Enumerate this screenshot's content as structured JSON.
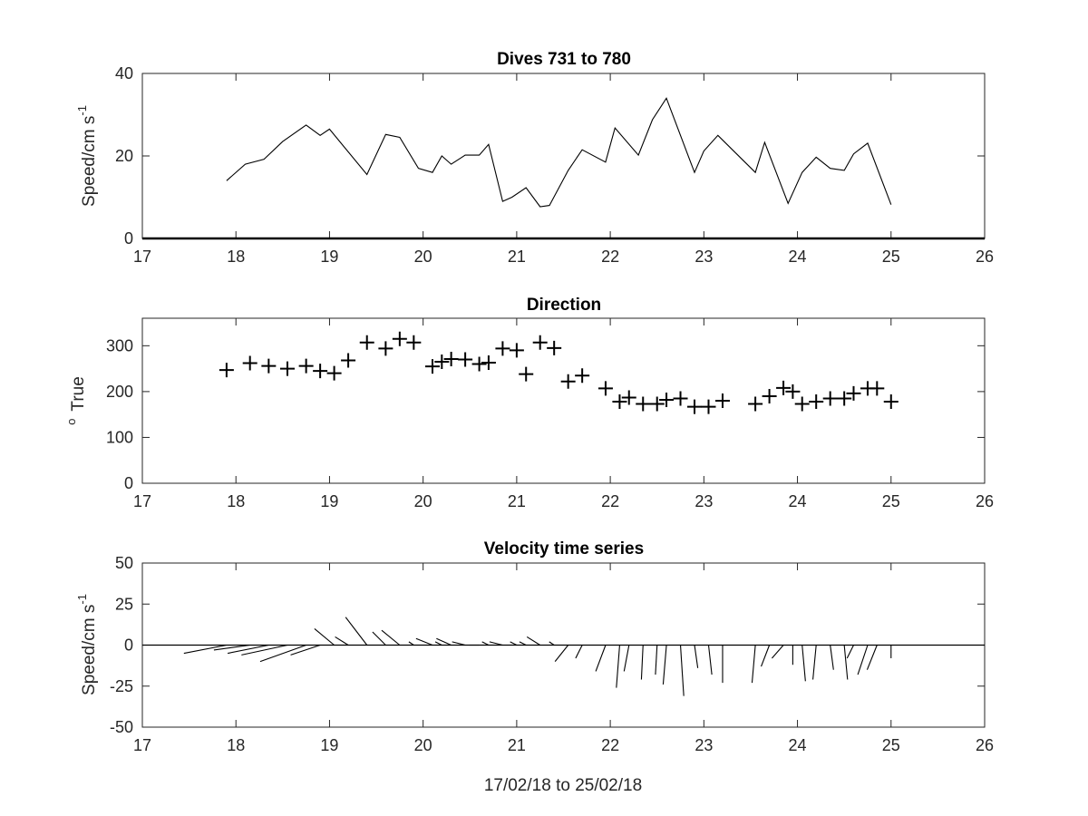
{
  "chart_data": [
    {
      "type": "line",
      "title": "Dives 731 to 780",
      "ylabel": "Speed/cm s",
      "ylabel_sup": "-1",
      "xlim": [
        17,
        26
      ],
      "ylim": [
        0,
        40
      ],
      "xticks": [
        17,
        18,
        19,
        20,
        21,
        22,
        23,
        24,
        25,
        26
      ],
      "yticks": [
        0,
        20,
        40
      ],
      "x": [
        17.9,
        18.1,
        18.3,
        18.5,
        18.75,
        18.9,
        19.0,
        19.4,
        19.6,
        19.75,
        19.95,
        20.1,
        20.2,
        20.3,
        20.45,
        20.6,
        20.7,
        20.85,
        20.95,
        21.1,
        21.25,
        21.35,
        21.55,
        21.7,
        21.95,
        22.05,
        22.3,
        22.45,
        22.6,
        22.9,
        23.0,
        23.15,
        23.55,
        23.65,
        23.9,
        24.05,
        24.2,
        24.35,
        24.5,
        24.6,
        24.75,
        25.0
      ],
      "values": [
        14,
        18,
        19.2,
        23.5,
        27.5,
        25,
        26.5,
        15.5,
        25.2,
        24.5,
        17,
        16,
        20,
        18,
        20.2,
        20.2,
        22.8,
        9,
        10,
        12.3,
        7.7,
        8,
        16.5,
        21.5,
        18.5,
        26.8,
        20.2,
        28.8,
        34,
        16,
        21.2,
        25,
        16,
        23.3,
        8.5,
        16,
        19.7,
        17,
        16.5,
        20.5,
        23.1,
        8.2
      ]
    },
    {
      "type": "scatter",
      "title": "Direction",
      "ylabel": "True",
      "ylabel_sup": "o",
      "xlim": [
        17,
        26
      ],
      "ylim": [
        0,
        360
      ],
      "xticks": [
        17,
        18,
        19,
        20,
        21,
        22,
        23,
        24,
        25,
        26
      ],
      "yticks": [
        0,
        100,
        200,
        300
      ],
      "x": [
        17.9,
        18.15,
        18.35,
        18.55,
        18.75,
        18.9,
        19.05,
        19.2,
        19.4,
        19.6,
        19.75,
        19.9,
        20.1,
        20.2,
        20.3,
        20.45,
        20.6,
        20.7,
        20.85,
        21.0,
        21.1,
        21.25,
        21.4,
        21.55,
        21.7,
        21.95,
        22.1,
        22.2,
        22.35,
        22.5,
        22.6,
        22.75,
        22.9,
        23.05,
        23.2,
        23.55,
        23.7,
        23.85,
        23.95,
        24.05,
        24.2,
        24.35,
        24.5,
        24.6,
        24.75,
        24.85,
        25.0
      ],
      "values": [
        247,
        262,
        256,
        250,
        256,
        245,
        240,
        268,
        307,
        294,
        315,
        307,
        255,
        265,
        271,
        270,
        260,
        263,
        294,
        290,
        238,
        307,
        295,
        222,
        235,
        207,
        178,
        187,
        173,
        173,
        182,
        185,
        167,
        167,
        180,
        173,
        190,
        208,
        200,
        173,
        178,
        185,
        185,
        196,
        207,
        207,
        178
      ]
    },
    {
      "type": "quiver",
      "title": "Velocity time series",
      "ylabel": "Speed/cm s",
      "ylabel_sup": "-1",
      "xlabel": "17/02/18 to 25/02/18",
      "xlim": [
        17,
        26
      ],
      "ylim": [
        -50,
        50
      ],
      "xticks": [
        17,
        18,
        19,
        20,
        21,
        22,
        23,
        24,
        25,
        26
      ],
      "yticks": [
        -50,
        -25,
        0,
        25,
        50
      ],
      "x": [
        17.9,
        18.15,
        18.35,
        18.55,
        18.75,
        18.9,
        19.05,
        19.2,
        19.4,
        19.6,
        19.75,
        19.9,
        20.1,
        20.2,
        20.3,
        20.45,
        20.6,
        20.7,
        20.85,
        21.0,
        21.1,
        21.25,
        21.4,
        21.55,
        21.7,
        21.95,
        22.1,
        22.2,
        22.35,
        22.5,
        22.6,
        22.75,
        22.9,
        23.05,
        23.2,
        23.55,
        23.7,
        23.85,
        23.95,
        24.05,
        24.2,
        24.35,
        24.5,
        24.6,
        24.75,
        24.85,
        25.0
      ],
      "u": [
        -26,
        -22,
        -25,
        -28,
        -28,
        -18,
        -12,
        -8,
        -13,
        -8,
        -11,
        -3,
        -10,
        -4,
        -9,
        -8,
        -6,
        -4,
        -8,
        -4,
        -4,
        -8,
        -3,
        -8,
        -4,
        -6,
        -2,
        -3,
        -1,
        -1,
        -2,
        2,
        2,
        2,
        0,
        -2,
        -5,
        -7,
        0,
        2,
        -2,
        2,
        2,
        -4,
        -6,
        -6,
        0
      ],
      "v": [
        -5,
        -3,
        -5,
        -6,
        -10,
        -6,
        10,
        5,
        17,
        8,
        9,
        2,
        4,
        2,
        4,
        2,
        0,
        2,
        2,
        2,
        2,
        5,
        2,
        -10,
        -8,
        -16,
        -26,
        -16,
        -21,
        -18,
        -24,
        -31,
        -14,
        -18,
        -23,
        -23,
        -13,
        -8,
        -12,
        -22,
        -21,
        -15,
        -21,
        -8,
        -18,
        -15,
        -8
      ]
    }
  ]
}
